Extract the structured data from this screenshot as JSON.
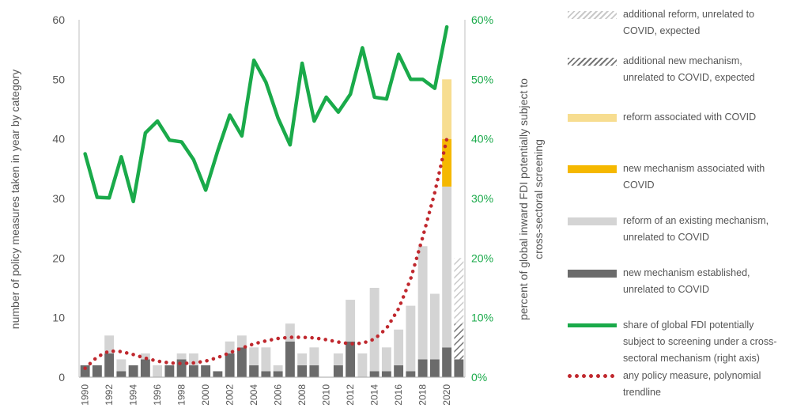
{
  "chart_data": {
    "type": "bar",
    "x": [
      1990,
      1991,
      1992,
      1993,
      1994,
      1995,
      1996,
      1997,
      1998,
      1999,
      2000,
      2001,
      2002,
      2003,
      2004,
      2005,
      2006,
      2007,
      2008,
      2009,
      2010,
      2011,
      2012,
      2013,
      2014,
      2015,
      2016,
      2017,
      2018,
      2019,
      2020,
      2021
    ],
    "xtick_labels": [
      "1990",
      "1992",
      "1994",
      "1996",
      "1998",
      "2000",
      "2002",
      "2004",
      "2006",
      "2008",
      "2010",
      "2012",
      "2014",
      "2016",
      "2018",
      "2020"
    ],
    "ylabel": "number of policy measures taken in year by category",
    "ylim": [
      0,
      60
    ],
    "yticks": [
      "0",
      "10",
      "20",
      "30",
      "40",
      "50",
      "60"
    ],
    "y2label": "percent of global inward FDI potentially subject to cross-sectoral screening",
    "y2lim": [
      0,
      60
    ],
    "y2ticks": [
      "0%",
      "10%",
      "20%",
      "30%",
      "40%",
      "50%",
      "60%"
    ],
    "stacked": true,
    "series": [
      {
        "key": "new_unrelated",
        "name": "new mechanism established, unrelated to COVID",
        "color": "#6b6b6b",
        "values": [
          2,
          2,
          4,
          1,
          2,
          3,
          0,
          2,
          3,
          2,
          2,
          1,
          4,
          5,
          2,
          1,
          1,
          6,
          2,
          2,
          0,
          2,
          6,
          0,
          1,
          1,
          2,
          1,
          3,
          3,
          5,
          3
        ]
      },
      {
        "key": "reform_unrelated",
        "name": "reform of an existing mechanism, unrelated to COVID",
        "color": "#d4d4d4",
        "values": [
          0,
          0,
          3,
          2,
          0,
          1,
          2,
          0,
          1,
          2,
          0,
          0,
          2,
          2,
          3,
          4,
          1,
          3,
          2,
          3,
          0,
          2,
          7,
          4,
          14,
          4,
          6,
          11,
          19,
          11,
          27,
          0
        ]
      },
      {
        "key": "new_covid",
        "name": "new mechanism associated with COVID",
        "color": "#f5b800",
        "values": [
          0,
          0,
          0,
          0,
          0,
          0,
          0,
          0,
          0,
          0,
          0,
          0,
          0,
          0,
          0,
          0,
          0,
          0,
          0,
          0,
          0,
          0,
          0,
          0,
          0,
          0,
          0,
          0,
          0,
          0,
          8,
          0
        ]
      },
      {
        "key": "reform_covid",
        "name": "reform associated with COVID",
        "color": "#f7dd90",
        "values": [
          0,
          0,
          0,
          0,
          0,
          0,
          0,
          0,
          0,
          0,
          0,
          0,
          0,
          0,
          0,
          0,
          0,
          0,
          0,
          0,
          0,
          0,
          0,
          0,
          0,
          0,
          0,
          0,
          0,
          0,
          10,
          0
        ]
      },
      {
        "key": "new_expected",
        "name": "additional new mechanism, unrelated to COVID, expected",
        "color": "#777777",
        "values": [
          0,
          0,
          0,
          0,
          0,
          0,
          0,
          0,
          0,
          0,
          0,
          0,
          0,
          0,
          0,
          0,
          0,
          0,
          0,
          0,
          0,
          0,
          0,
          0,
          0,
          0,
          0,
          0,
          0,
          0,
          0,
          6
        ]
      },
      {
        "key": "reform_expected",
        "name": "additional reform, unrelated to COVID, expected",
        "color": "#c9c9c9",
        "values": [
          0,
          0,
          0,
          0,
          0,
          0,
          0,
          0,
          0,
          0,
          0,
          0,
          0,
          0,
          0,
          0,
          0,
          0,
          0,
          0,
          0,
          0,
          0,
          0,
          0,
          0,
          0,
          0,
          0,
          0,
          0,
          11
        ]
      }
    ],
    "fdi_share": {
      "name": "share of global FDI potentially subject to screening under a cross-sectoral mechanism (right axis)",
      "color": "#1aaa4a",
      "axis": "right",
      "x": [
        1990,
        1991,
        1992,
        1993,
        1994,
        1995,
        1996,
        1997,
        1998,
        1999,
        2000,
        2001,
        2002,
        2003,
        2004,
        2005,
        2006,
        2007,
        2008,
        2009,
        2010,
        2011,
        2012,
        2013,
        2014,
        2015,
        2016,
        2017,
        2018,
        2019,
        2020
      ],
      "values": [
        37.5,
        30.2,
        30.1,
        37,
        29.5,
        41,
        43,
        39.8,
        39.5,
        36.5,
        31.4,
        38,
        44,
        40.5,
        53.2,
        49.5,
        43.5,
        39,
        52.7,
        43,
        47,
        44.5,
        47.5,
        55.3,
        47,
        46.7,
        54.2,
        50,
        50,
        48.5,
        58.8
      ]
    },
    "trendline": {
      "name": "any policy measure, polynomial trendline",
      "color": "#c0282e",
      "axis": "left",
      "x": [
        1990,
        1991,
        1992,
        1993,
        1994,
        1995,
        1996,
        1997,
        1998,
        1999,
        2000,
        2001,
        2002,
        2003,
        2004,
        2005,
        2006,
        2007,
        2008,
        2009,
        2010,
        2011,
        2012,
        2013,
        2014,
        2015,
        2016,
        2017,
        2018,
        2019,
        2020
      ],
      "values": [
        1.5,
        3.4,
        4.4,
        4.3,
        3.8,
        3.2,
        2.7,
        2.4,
        2.3,
        2.4,
        2.7,
        3.3,
        4.1,
        4.9,
        5.6,
        6.1,
        6.5,
        6.7,
        6.7,
        6.6,
        6.3,
        5.9,
        5.6,
        5.7,
        6.4,
        8.2,
        11.5,
        16.5,
        23.5,
        31,
        40
      ]
    },
    "legend_position": "right",
    "legend": [
      {
        "label": "additional reform, unrelated to COVID, expected",
        "style": "hatch-light"
      },
      {
        "label": "additional new mechanism, unrelated to COVID, expected",
        "style": "hatch-dark"
      },
      {
        "label": "reform associated with COVID",
        "style": "bar",
        "color": "#f7dd90"
      },
      {
        "label": "new mechanism associated with COVID",
        "style": "bar",
        "color": "#f5b800"
      },
      {
        "label": "reform of an existing mechanism, unrelated to COVID",
        "style": "bar",
        "color": "#d4d4d4"
      },
      {
        "label": "new mechanism established, unrelated to COVID",
        "style": "bar",
        "color": "#6b6b6b"
      },
      {
        "label": "share of global FDI potentially subject to screening under a cross-sectoral mechanism (right axis)",
        "style": "line",
        "color": "#1aaa4a"
      },
      {
        "label": "any policy measure, polynomial trendline",
        "style": "dots",
        "color": "#c0282e"
      }
    ],
    "grid": false
  }
}
